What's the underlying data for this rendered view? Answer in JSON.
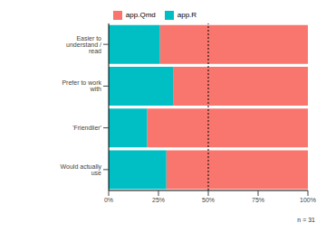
{
  "chart_data": {
    "type": "bar",
    "orientation": "horizontal",
    "stacked": true,
    "legend": "top",
    "categories": [
      "Easier to understand / read",
      "Prefer to work with",
      "'Friendlier'",
      "Would actually use"
    ],
    "series": [
      {
        "name": "app.R",
        "color": "#00BFC4",
        "values": [
          25.8,
          32.3,
          19.4,
          29.0
        ]
      },
      {
        "name": "app.Qmd",
        "color": "#F8766D",
        "values": [
          74.2,
          67.7,
          80.6,
          71.0
        ]
      }
    ],
    "xlim": [
      0,
      100
    ],
    "xticks": [
      {
        "value": 0,
        "label": "0%"
      },
      {
        "value": 25,
        "label": "25%"
      },
      {
        "value": 50,
        "label": "50%"
      },
      {
        "value": 75,
        "label": "75%"
      },
      {
        "value": 100,
        "label": "100%"
      }
    ],
    "reference_line": 50,
    "annotations": [
      "n = 31"
    ],
    "grid": false
  }
}
